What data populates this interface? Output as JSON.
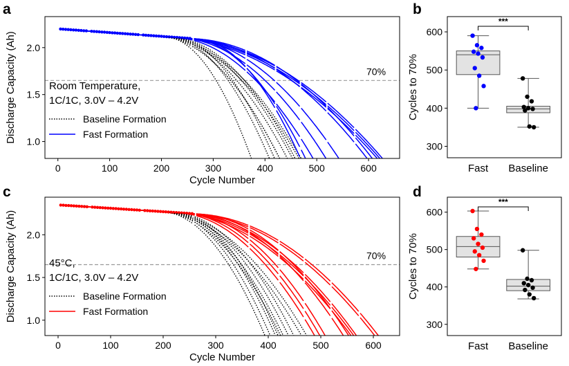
{
  "panels": {
    "a": {
      "letter": "a"
    },
    "b": {
      "letter": "b"
    },
    "c": {
      "letter": "c"
    },
    "d": {
      "letter": "d"
    }
  },
  "chart_data": [
    {
      "panel": "a",
      "type": "line",
      "xlabel": "Cycle Number",
      "ylabel": "Discharge Capacity (Ah)",
      "xlim": [
        -25,
        660
      ],
      "ylim": [
        0.82,
        2.33
      ],
      "xticks": [
        0,
        100,
        200,
        300,
        400,
        500,
        600
      ],
      "yticks": [
        1.0,
        1.5,
        2.0
      ],
      "threshold": {
        "y": 1.65,
        "label": "70%"
      },
      "annotation": [
        "Room Temperature,",
        "1C/1C, 3.0V – 4.2V"
      ],
      "legend": {
        "position": "lower-left",
        "entries": [
          {
            "label": "Baseline Formation",
            "style": "dotted",
            "color": "#000000"
          },
          {
            "label": "Fast Formation",
            "style": "solid",
            "color": "#0000ff"
          }
        ]
      },
      "start_value": 2.2,
      "baseline_end_cycles": [
        430,
        445,
        455,
        460,
        468,
        472,
        410,
        420,
        430,
        375
      ],
      "fast_end_cycles": [
        495,
        520,
        545,
        600,
        610,
        620,
        625,
        630,
        480,
        470
      ],
      "series": [
        {
          "name": "Baseline Formation",
          "color": "#000000",
          "style": "dotted"
        },
        {
          "name": "Fast Formation",
          "color": "#0000ff",
          "style": "solid"
        }
      ]
    },
    {
      "panel": "b",
      "type": "box",
      "ylabel": "Cycles to 70%",
      "categories": [
        "Fast",
        "Baseline"
      ],
      "ylim": [
        270,
        640
      ],
      "yticks": [
        300,
        400,
        500,
        600
      ],
      "significance": "***",
      "groups": [
        {
          "name": "Fast",
          "color": "#0000ff",
          "q1": 488,
          "median": 540,
          "q3": 550,
          "whisker_low": 400,
          "whisker_high": 590,
          "points": [
            590,
            565,
            558,
            548,
            543,
            533,
            505,
            485,
            458,
            400
          ]
        },
        {
          "name": "Baseline",
          "color": "#000000",
          "q1": 388,
          "median": 398,
          "q3": 405,
          "whisker_low": 350,
          "whisker_high": 478,
          "points": [
            478,
            430,
            418,
            403,
            400,
            398,
            394,
            352,
            350
          ]
        }
      ]
    },
    {
      "panel": "c",
      "type": "line",
      "xlabel": "Cycle Number",
      "ylabel": "Discharge Capacity (Ah)",
      "xlim": [
        -25,
        650
      ],
      "ylim": [
        0.82,
        2.44
      ],
      "xticks": [
        0,
        100,
        200,
        300,
        400,
        500,
        600
      ],
      "yticks": [
        1.0,
        1.5,
        2.0
      ],
      "threshold": {
        "y": 1.65,
        "label": "70%"
      },
      "annotation": [
        "45°C,",
        "1C/1C, 3.0V – 4.2V"
      ],
      "legend": {
        "position": "lower-left",
        "entries": [
          {
            "label": "Baseline Formation",
            "style": "dotted",
            "color": "#000000"
          },
          {
            "label": "Fast Formation",
            "style": "solid",
            "color": "#ff0000"
          }
        ]
      },
      "start_value": 2.35,
      "baseline_end_cycles": [
        395,
        405,
        415,
        420,
        425,
        430,
        440,
        450,
        465,
        475
      ],
      "fast_end_cycles": [
        490,
        500,
        510,
        545,
        555,
        560,
        565,
        570,
        605,
        612
      ],
      "series": [
        {
          "name": "Baseline Formation",
          "color": "#000000",
          "style": "dotted"
        },
        {
          "name": "Fast Formation",
          "color": "#ff0000",
          "style": "solid"
        }
      ]
    },
    {
      "panel": "d",
      "type": "box",
      "ylabel": "Cycles to 70%",
      "categories": [
        "Fast",
        "Baseline"
      ],
      "ylim": [
        270,
        640
      ],
      "yticks": [
        300,
        400,
        500,
        600
      ],
      "significance": "***",
      "groups": [
        {
          "name": "Fast",
          "color": "#ff0000",
          "q1": 480,
          "median": 508,
          "q3": 535,
          "whisker_low": 448,
          "whisker_high": 603,
          "points": [
            603,
            555,
            540,
            530,
            515,
            505,
            495,
            485,
            470,
            448
          ]
        },
        {
          "name": "Baseline",
          "color": "#000000",
          "q1": 390,
          "median": 402,
          "q3": 420,
          "whisker_low": 368,
          "whisker_high": 498,
          "points": [
            498,
            422,
            418,
            410,
            405,
            398,
            392,
            380,
            370
          ]
        }
      ]
    }
  ]
}
